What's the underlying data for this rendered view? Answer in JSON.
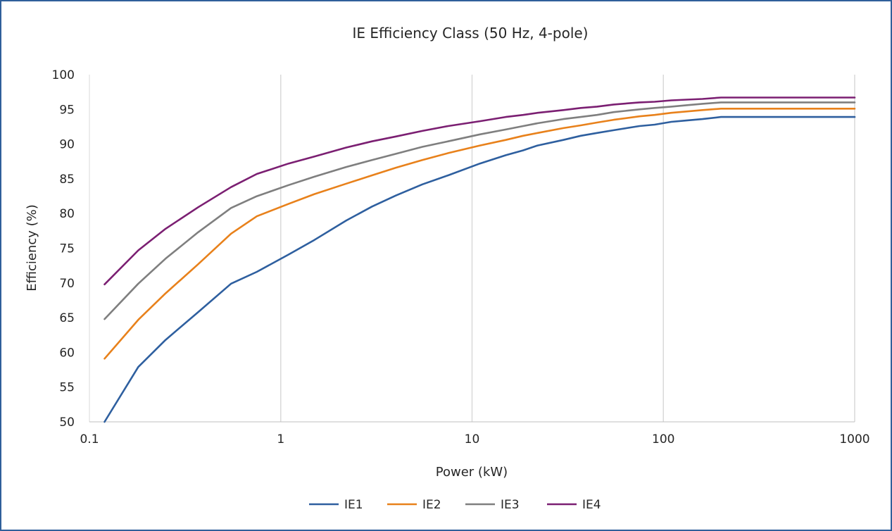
{
  "chart_data": {
    "type": "line",
    "title": "IE Efficiency Class (50 Hz, 4-pole)",
    "xlabel": "Power (kW)",
    "ylabel": "Efficiency (%)",
    "x_scale": "log",
    "xlim": [
      0.1,
      1000
    ],
    "ylim": [
      50,
      100
    ],
    "x_ticks": [
      0.1,
      1,
      10,
      100,
      1000
    ],
    "x_tick_labels": [
      "0.1",
      "1",
      "10",
      "100",
      "1000"
    ],
    "y_ticks": [
      50,
      55,
      60,
      65,
      70,
      75,
      80,
      85,
      90,
      95,
      100
    ],
    "y_tick_labels": [
      "50",
      "55",
      "60",
      "65",
      "70",
      "75",
      "80",
      "85",
      "90",
      "95",
      "100"
    ],
    "grid": "vertical major gridlines on x axis",
    "legend_position": "bottom",
    "x": [
      0.12,
      0.18,
      0.25,
      0.37,
      0.55,
      0.75,
      1.1,
      1.5,
      2.2,
      3,
      4,
      5.5,
      7.5,
      11,
      15,
      18.5,
      22,
      30,
      37,
      45,
      55,
      75,
      90,
      110,
      132,
      160,
      200,
      1000
    ],
    "series": [
      {
        "name": "IE1",
        "color": "#2e5f9f",
        "values": [
          50.0,
          57.9,
          61.8,
          65.8,
          69.9,
          71.6,
          74.1,
          76.2,
          79.0,
          81.0,
          82.6,
          84.2,
          85.5,
          87.2,
          88.4,
          89.1,
          89.8,
          90.6,
          91.2,
          91.6,
          92.0,
          92.6,
          92.8,
          93.2,
          93.4,
          93.6,
          93.9,
          93.9
        ]
      },
      {
        "name": "IE2",
        "color": "#e8811b",
        "values": [
          59.1,
          64.7,
          68.5,
          72.7,
          77.1,
          79.6,
          81.4,
          82.8,
          84.3,
          85.5,
          86.6,
          87.7,
          88.7,
          89.8,
          90.6,
          91.2,
          91.6,
          92.3,
          92.7,
          93.1,
          93.5,
          94.0,
          94.2,
          94.5,
          94.7,
          94.9,
          95.1,
          95.1
        ]
      },
      {
        "name": "IE3",
        "color": "#7f7f7f",
        "values": [
          64.8,
          69.9,
          73.5,
          77.3,
          80.8,
          82.5,
          84.1,
          85.3,
          86.7,
          87.7,
          88.6,
          89.6,
          90.4,
          91.4,
          92.1,
          92.6,
          93.0,
          93.6,
          93.9,
          94.2,
          94.6,
          95.0,
          95.2,
          95.4,
          95.6,
          95.8,
          96.0,
          96.0
        ]
      },
      {
        "name": "IE4",
        "color": "#7b1f72",
        "values": [
          69.8,
          74.7,
          77.8,
          80.9,
          83.8,
          85.7,
          87.2,
          88.2,
          89.5,
          90.4,
          91.1,
          91.9,
          92.6,
          93.3,
          93.9,
          94.2,
          94.5,
          94.9,
          95.2,
          95.4,
          95.7,
          96.0,
          96.1,
          96.3,
          96.4,
          96.5,
          96.7,
          96.7
        ]
      }
    ]
  }
}
